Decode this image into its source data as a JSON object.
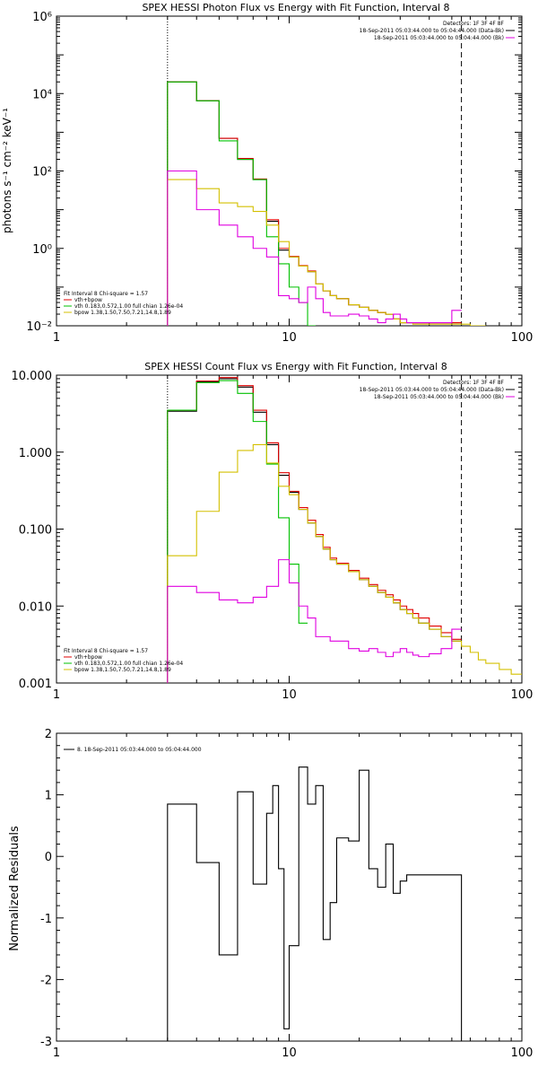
{
  "chart_data": [
    {
      "type": "line",
      "title": "SPEX HESSI Photon Flux vs Energy with Fit Function, Interval 8",
      "ylabel": "photons s⁻¹ cm⁻² keV⁻¹",
      "xlabel": "",
      "xscale": "log",
      "yscale": "log",
      "xlim": [
        1,
        100
      ],
      "ylim": [
        0.01,
        1000000
      ],
      "x_ticks": [
        1,
        10,
        100
      ],
      "x_tick_labels": [
        "1",
        "10",
        "100"
      ],
      "y_ticks": [
        0.01,
        1,
        100,
        10000,
        1000000
      ],
      "y_tick_labels": [
        "10⁻²",
        "10⁰",
        "10²",
        "10⁴",
        "10⁶"
      ],
      "vlines": [
        {
          "x": 3.0,
          "style": "dotted"
        },
        {
          "x": 55,
          "style": "dashed"
        }
      ],
      "legend_top_right": {
        "header": "Detectors: 1F 3F 4F 8F",
        "entries": [
          {
            "text": "18-Sep-2011 05:03:44.000 to 05:04:44.000 (Data-Bk)",
            "color": "#000000"
          },
          {
            "text": "18-Sep-2011 05:03:44.000 to 05:04:44.000 (Bk)",
            "color": "#e000e0"
          }
        ]
      },
      "legend_bottom_left": {
        "header": "Fit Interval 8   Chi-square = 1.57",
        "entries": [
          {
            "text": "vth+bpow",
            "color": "#e00000"
          },
          {
            "text": "vth 0.183,0.572,1.00  full chian 1.26e-04",
            "color": "#00c000"
          },
          {
            "text": "bpow 1.38,1.50,7.50,7.21,14.8,1.89",
            "color": "#d4c000"
          }
        ]
      },
      "series": [
        {
          "color": "#000000",
          "x": [
            3.0,
            3.5,
            4.0,
            4.5,
            5.0,
            5.5,
            6.0,
            6.5,
            7.0,
            7.5,
            8.0,
            8.5,
            9.0,
            9.5,
            10,
            11,
            12,
            13,
            14,
            15,
            16,
            18,
            20,
            22,
            24,
            26,
            28,
            30,
            32,
            34,
            36,
            40,
            45,
            50,
            55
          ],
          "y": [
            20000,
            20000,
            6500,
            6500,
            700,
            700,
            200,
            200,
            60,
            60,
            5,
            5,
            0.9,
            0.9,
            0.6,
            0.35,
            0.25,
            0.12,
            0.08,
            0.06,
            0.05,
            0.035,
            0.03,
            0.025,
            0.022,
            0.02,
            0.015,
            0.012,
            0.012,
            0.012,
            0.012,
            0.012,
            0.012,
            0.012,
            0.012
          ]
        },
        {
          "color": "#e00000",
          "x": [
            3.0,
            3.5,
            4.0,
            4.5,
            5.0,
            5.5,
            6.0,
            6.5,
            7.0,
            7.5,
            8.0,
            8.5,
            9.0,
            9.5,
            10,
            11,
            12,
            13,
            14,
            15,
            16,
            18,
            20,
            22,
            24,
            26,
            28,
            30,
            32,
            34,
            36,
            40,
            45,
            50,
            55
          ],
          "y": [
            20000,
            20000,
            6500,
            6500,
            700,
            700,
            210,
            210,
            62,
            62,
            5.5,
            5.5,
            1.0,
            1.0,
            0.62,
            0.36,
            0.26,
            0.12,
            0.08,
            0.06,
            0.05,
            0.035,
            0.03,
            0.025,
            0.022,
            0.02,
            0.015,
            0.012,
            0.012,
            0.012,
            0.012,
            0.012,
            0.012,
            0.012,
            0.012
          ]
        },
        {
          "color": "#00c000",
          "x": [
            3.0,
            3.5,
            4.0,
            4.5,
            5.0,
            5.5,
            6.0,
            6.5,
            7.0,
            7.5,
            8.0,
            8.5,
            9.0,
            9.5,
            10,
            11,
            12,
            13
          ],
          "y": [
            20000,
            20000,
            6500,
            6500,
            600,
            600,
            200,
            200,
            60,
            60,
            2,
            2,
            0.4,
            0.4,
            0.1,
            0.04,
            0.01,
            0.005
          ]
        },
        {
          "color": "#d4c000",
          "x": [
            3.0,
            3.5,
            4.0,
            4.5,
            5.0,
            5.5,
            6.0,
            6.5,
            7.0,
            7.5,
            8.0,
            8.5,
            9.0,
            9.5,
            10,
            11,
            12,
            13,
            14,
            15,
            16,
            18,
            20,
            22,
            24,
            26,
            28,
            30,
            32,
            34,
            36,
            40,
            45,
            50,
            55,
            60,
            65,
            70
          ],
          "y": [
            60,
            60,
            35,
            35,
            15,
            15,
            12,
            12,
            9,
            9,
            4,
            4,
            1.5,
            1.5,
            0.6,
            0.35,
            0.25,
            0.12,
            0.08,
            0.06,
            0.05,
            0.035,
            0.03,
            0.025,
            0.022,
            0.02,
            0.015,
            0.012,
            0.012,
            0.011,
            0.011,
            0.011,
            0.011,
            0.011,
            0.011,
            0.01,
            0.01,
            0.01
          ]
        },
        {
          "color": "#e000e0",
          "x": [
            3.0,
            3.5,
            4.0,
            4.5,
            5.0,
            5.5,
            6.0,
            6.5,
            7.0,
            7.5,
            8.0,
            8.5,
            9.0,
            9.5,
            10,
            11,
            12,
            13,
            14,
            15,
            16,
            18,
            20,
            22,
            24,
            26,
            28,
            30,
            32,
            34,
            36,
            40,
            45,
            50,
            55
          ],
          "y": [
            100,
            100,
            10,
            10,
            4,
            4,
            2,
            2,
            1,
            1,
            0.6,
            0.6,
            0.06,
            0.06,
            0.05,
            0.04,
            0.1,
            0.05,
            0.022,
            0.018,
            0.018,
            0.02,
            0.018,
            0.015,
            0.012,
            0.015,
            0.02,
            0.015,
            0.012,
            0.012,
            0.012,
            0.012,
            0.012,
            0.025,
            0.025
          ]
        }
      ]
    },
    {
      "type": "line",
      "title": "SPEX HESSI Count Flux vs Energy with Fit Function, Interval 8",
      "ylabel": "",
      "xlabel": "",
      "xscale": "log",
      "yscale": "log",
      "xlim": [
        1,
        100
      ],
      "ylim": [
        0.001,
        10
      ],
      "x_ticks": [
        1,
        10,
        100
      ],
      "x_tick_labels": [
        "1",
        "10",
        "100"
      ],
      "y_ticks": [
        0.001,
        0.01,
        0.1,
        1,
        10
      ],
      "y_tick_labels": [
        "0.001",
        "0.010",
        "0.100",
        "1.000",
        "10.000"
      ],
      "vlines": [
        {
          "x": 3.0,
          "style": "dotted"
        },
        {
          "x": 55,
          "style": "dashed"
        }
      ],
      "legend_top_right": {
        "header": "Detectors: 1F 3F 4F 8F",
        "entries": [
          {
            "text": "18-Sep-2011 05:03:44.000 to 05:04:44.000 (Data-Bk)",
            "color": "#000000"
          },
          {
            "text": "18-Sep-2011 05:03:44.000 to 05:04:44.000 (Bk)",
            "color": "#e000e0"
          }
        ]
      },
      "legend_bottom_left": {
        "header": "Fit Interval 8   Chi-square = 1.57",
        "entries": [
          {
            "text": "vth+bpow",
            "color": "#e00000"
          },
          {
            "text": "vth 0.183,0.572,1.00  full chian 1.26e-04",
            "color": "#00c000"
          },
          {
            "text": "bpow 1.38,1.50,7.50,7.21,14.8,1.89",
            "color": "#d4c000"
          }
        ]
      },
      "series": [
        {
          "color": "#000000",
          "x": [
            3.0,
            3.5,
            4.0,
            4.5,
            5.0,
            5.5,
            6.0,
            6.5,
            7.0,
            7.5,
            8.0,
            8.5,
            9.0,
            9.5,
            10,
            11,
            12,
            13,
            14,
            15,
            16,
            18,
            20,
            22,
            24,
            26,
            28,
            30,
            32,
            34,
            36,
            40,
            45,
            50,
            55
          ],
          "y": [
            3.4,
            3.4,
            8.2,
            8.2,
            9.0,
            9.0,
            7.0,
            7.0,
            3.3,
            3.3,
            1.25,
            1.25,
            0.5,
            0.5,
            0.3,
            0.18,
            0.12,
            0.08,
            0.055,
            0.04,
            0.035,
            0.028,
            0.022,
            0.018,
            0.015,
            0.013,
            0.011,
            0.009,
            0.008,
            0.007,
            0.006,
            0.005,
            0.004,
            0.0035,
            0.003
          ]
        },
        {
          "color": "#e00000",
          "x": [
            3.0,
            3.5,
            4.0,
            4.5,
            5.0,
            5.5,
            6.0,
            6.5,
            7.0,
            7.5,
            8.0,
            8.5,
            9.0,
            9.5,
            10,
            11,
            12,
            13,
            14,
            15,
            16,
            18,
            20,
            22,
            24,
            26,
            28,
            30,
            32,
            34,
            36,
            40,
            45,
            50,
            55
          ],
          "y": [
            3.5,
            3.5,
            8.4,
            8.4,
            9.3,
            9.3,
            7.3,
            7.3,
            3.5,
            3.5,
            1.32,
            1.32,
            0.54,
            0.54,
            0.31,
            0.19,
            0.13,
            0.085,
            0.058,
            0.042,
            0.036,
            0.029,
            0.023,
            0.019,
            0.016,
            0.014,
            0.012,
            0.01,
            0.009,
            0.008,
            0.007,
            0.0055,
            0.0045,
            0.0037,
            0.0031
          ]
        },
        {
          "color": "#00c000",
          "x": [
            3.0,
            3.5,
            4.0,
            4.5,
            5.0,
            5.5,
            6.0,
            6.5,
            7.0,
            7.5,
            8.0,
            8.5,
            9.0,
            9.5,
            10,
            11,
            12
          ],
          "y": [
            3.5,
            3.5,
            8.0,
            8.0,
            8.5,
            8.5,
            5.8,
            5.8,
            2.5,
            2.5,
            0.7,
            0.7,
            0.14,
            0.14,
            0.035,
            0.006,
            0.002
          ]
        },
        {
          "color": "#d4c000",
          "x": [
            3.0,
            3.5,
            4.0,
            4.5,
            5.0,
            5.5,
            6.0,
            6.5,
            7.0,
            7.5,
            8.0,
            8.5,
            9.0,
            9.5,
            10,
            11,
            12,
            13,
            14,
            15,
            16,
            18,
            20,
            22,
            24,
            26,
            28,
            30,
            32,
            34,
            36,
            40,
            45,
            50,
            55,
            60,
            65,
            70,
            80,
            90,
            100
          ],
          "y": [
            0.045,
            0.045,
            0.17,
            0.17,
            0.55,
            0.55,
            1.05,
            1.05,
            1.25,
            1.25,
            0.72,
            0.72,
            0.36,
            0.36,
            0.28,
            0.18,
            0.12,
            0.08,
            0.055,
            0.04,
            0.035,
            0.028,
            0.022,
            0.018,
            0.015,
            0.013,
            0.011,
            0.009,
            0.008,
            0.007,
            0.006,
            0.005,
            0.004,
            0.0035,
            0.003,
            0.0025,
            0.002,
            0.0018,
            0.0015,
            0.0013,
            0.0011
          ]
        },
        {
          "color": "#e000e0",
          "x": [
            3.0,
            3.5,
            4.0,
            4.5,
            5.0,
            5.5,
            6.0,
            6.5,
            7.0,
            7.5,
            8.0,
            8.5,
            9.0,
            9.5,
            10,
            11,
            12,
            13,
            14,
            15,
            16,
            18,
            20,
            22,
            24,
            26,
            28,
            30,
            32,
            34,
            36,
            40,
            45,
            50,
            55
          ],
          "y": [
            0.018,
            0.018,
            0.015,
            0.015,
            0.012,
            0.012,
            0.011,
            0.011,
            0.013,
            0.013,
            0.018,
            0.018,
            0.04,
            0.04,
            0.02,
            0.01,
            0.007,
            0.004,
            0.004,
            0.0035,
            0.0035,
            0.0028,
            0.0026,
            0.0028,
            0.0025,
            0.0022,
            0.0025,
            0.0028,
            0.0025,
            0.0023,
            0.0022,
            0.0024,
            0.0028,
            0.005,
            0.005
          ]
        }
      ]
    },
    {
      "type": "line",
      "title": "",
      "ylabel": "Normalized Residuals",
      "xlabel": "",
      "xscale": "log",
      "yscale": "linear",
      "xlim": [
        1,
        100
      ],
      "ylim": [
        -3,
        2
      ],
      "x_ticks": [
        1,
        10,
        100
      ],
      "x_tick_labels": [
        "1",
        "10",
        "100"
      ],
      "y_ticks": [
        -3,
        -2,
        -1,
        0,
        1,
        2
      ],
      "y_tick_labels": [
        "-3",
        "-2",
        "-1",
        "0",
        "1",
        "2"
      ],
      "legend_top_left": {
        "entries": [
          {
            "text": "8. 18-Sep-2011 05:03:44.000 to 05:04:44.000",
            "color": "#000000"
          }
        ]
      },
      "series": [
        {
          "color": "#000000",
          "edges": [
            3.0,
            3.5,
            4.0,
            4.5,
            5.0,
            5.5,
            6.0,
            6.5,
            7.0,
            7.5,
            8.0,
            8.5,
            9.0,
            9.5,
            10,
            11,
            12,
            13,
            14,
            15,
            16,
            18,
            20,
            22,
            24,
            26,
            28,
            30,
            32,
            34,
            36,
            40,
            45,
            50,
            55
          ],
          "values": [
            0.85,
            0.85,
            -0.1,
            -0.1,
            -1.6,
            -1.6,
            1.05,
            1.05,
            -0.45,
            -0.45,
            0.7,
            1.15,
            -0.2,
            -2.8,
            -1.45,
            1.45,
            0.85,
            1.15,
            -1.35,
            -0.75,
            0.3,
            0.25,
            1.4,
            -0.2,
            -0.5,
            0.2,
            -0.6,
            -0.4,
            -0.3,
            -0.3,
            -0.3,
            -0.3,
            -0.3,
            -0.3
          ]
        }
      ]
    }
  ]
}
